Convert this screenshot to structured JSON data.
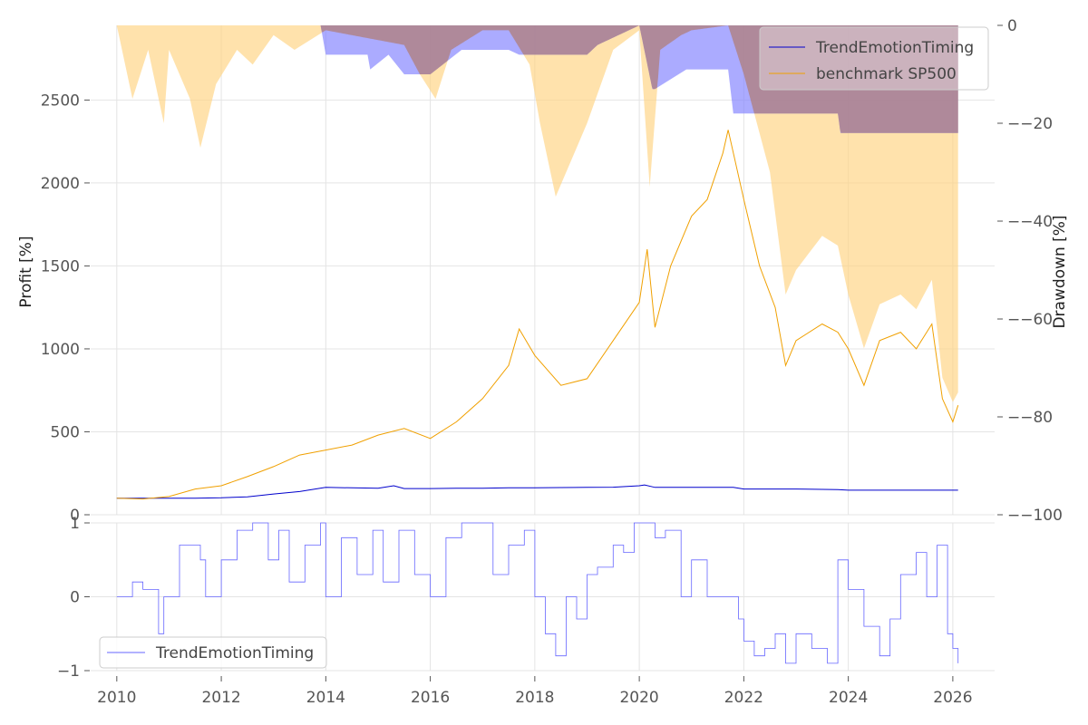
{
  "chart_data": [
    {
      "type": "line",
      "panel": "top",
      "title": "",
      "xlabel": "",
      "ylabel": "Profit [%]",
      "ylabel_right": "Drawdown [%]",
      "xlim": [
        2009.5,
        2026.8
      ],
      "ylim": [
        0,
        2950
      ],
      "ylim_right": [
        -100,
        0
      ],
      "xticks": [
        "2010",
        "2012",
        "2014",
        "2016",
        "2018",
        "2020",
        "2022",
        "2024",
        "2026"
      ],
      "yticks": [
        "0",
        "500",
        "1000",
        "1500",
        "2000",
        "2500"
      ],
      "yticks_right": [
        "0",
        "−20",
        "−40",
        "−60",
        "−80",
        "−100"
      ],
      "legend_position": "top-right",
      "grid": true,
      "series": [
        {
          "name": "TrendEmotionTiming",
          "color": "#0000cc",
          "x": [
            2010.0,
            2010.5,
            2011.0,
            2011.5,
            2012.0,
            2012.5,
            2013.0,
            2013.5,
            2014.0,
            2014.5,
            2015.0,
            2015.3,
            2015.5,
            2016.0,
            2016.5,
            2017.0,
            2017.5,
            2018.0,
            2018.5,
            2019.0,
            2019.5,
            2020.0,
            2020.1,
            2020.3,
            2020.6,
            2021.0,
            2021.5,
            2021.8,
            2022.0,
            2023.0,
            2023.8,
            2024.0,
            2024.5,
            2025.0,
            2025.5,
            2026.0,
            2026.1
          ],
          "values": [
            100,
            100,
            100,
            100,
            102,
            108,
            125,
            140,
            165,
            162,
            160,
            175,
            158,
            158,
            160,
            160,
            162,
            162,
            164,
            165,
            166,
            175,
            180,
            165,
            165,
            165,
            165,
            165,
            155,
            155,
            152,
            148,
            148,
            148,
            148,
            148,
            148
          ]
        },
        {
          "name": "benchmark SP500",
          "color": "#f0a000",
          "x": [
            2010.0,
            2010.5,
            2011.0,
            2011.5,
            2012.0,
            2012.5,
            2013.0,
            2013.5,
            2014.0,
            2014.5,
            2015.0,
            2015.5,
            2016.0,
            2016.5,
            2017.0,
            2017.5,
            2017.7,
            2018.0,
            2018.5,
            2019.0,
            2019.5,
            2020.0,
            2020.15,
            2020.3,
            2020.6,
            2021.0,
            2021.3,
            2021.6,
            2021.7,
            2022.0,
            2022.3,
            2022.6,
            2022.8,
            2023.0,
            2023.5,
            2023.8,
            2024.0,
            2024.3,
            2024.6,
            2025.0,
            2025.3,
            2025.6,
            2025.8,
            2026.0,
            2026.1
          ],
          "values": [
            100,
            95,
            110,
            155,
            175,
            230,
            290,
            360,
            390,
            420,
            480,
            520,
            460,
            560,
            700,
            900,
            1120,
            960,
            780,
            820,
            1050,
            1280,
            1600,
            1130,
            1500,
            1800,
            1900,
            2180,
            2320,
            1900,
            1500,
            1250,
            900,
            1050,
            1150,
            1100,
            1000,
            780,
            1050,
            1100,
            1000,
            1150,
            700,
            560,
            660
          ]
        }
      ],
      "drawdown_series": [
        {
          "name": "TrendEmotionTiming drawdown",
          "color": "#8888ff",
          "x": [
            2010.0,
            2013.9,
            2014.0,
            2014.8,
            2014.85,
            2015.2,
            2015.5,
            2016.0,
            2016.6,
            2017.5,
            2017.7,
            2019.0,
            2019.2,
            2020.0,
            2020.25,
            2020.3,
            2020.9,
            2021.0,
            2021.7,
            2021.8,
            2023.8,
            2023.85,
            2026.1
          ],
          "values": [
            0,
            0,
            -6,
            -6,
            -9,
            -6,
            -10,
            -10,
            -5,
            -5,
            -6,
            -6,
            -4,
            0,
            -13,
            -13,
            -9,
            -9,
            -9,
            -18,
            -18,
            -22,
            -22
          ]
        },
        {
          "name": "benchmark SP500 drawdown",
          "color": "#ffd27f",
          "x": [
            2010.0,
            2010.3,
            2010.6,
            2010.9,
            2011.0,
            2011.4,
            2011.6,
            2011.9,
            2012.3,
            2012.6,
            2013.0,
            2013.4,
            2014.0,
            2015.5,
            2015.8,
            2016.1,
            2016.4,
            2017.0,
            2017.5,
            2017.9,
            2018.1,
            2018.4,
            2018.8,
            2019.0,
            2019.5,
            2020.0,
            2020.2,
            2020.4,
            2020.8,
            2021.0,
            2021.7,
            2022.0,
            2022.5,
            2022.8,
            2023.0,
            2023.5,
            2023.8,
            2024.0,
            2024.3,
            2024.6,
            2025.0,
            2025.3,
            2025.6,
            2025.8,
            2026.0,
            2026.1
          ],
          "values": [
            0,
            -15,
            -5,
            -20,
            -5,
            -15,
            -25,
            -12,
            -5,
            -8,
            -2,
            -5,
            -1,
            -4,
            -10,
            -15,
            -5,
            -1,
            -1,
            -8,
            -20,
            -35,
            -25,
            -20,
            -5,
            -1,
            -33,
            -5,
            -2,
            -1,
            0,
            -10,
            -30,
            -55,
            -50,
            -43,
            -45,
            -55,
            -66,
            -57,
            -55,
            -58,
            -52,
            -72,
            -77,
            -75
          ]
        }
      ]
    },
    {
      "type": "line",
      "panel": "bottom",
      "title": "",
      "xlabel": "",
      "ylabel": "",
      "xlim": [
        2009.5,
        2026.8
      ],
      "ylim": [
        -1,
        1
      ],
      "yticks": [
        "−1",
        "0",
        "1"
      ],
      "xticks": [
        "2010",
        "2012",
        "2014",
        "2016",
        "2018",
        "2020",
        "2022",
        "2024",
        "2026"
      ],
      "legend_position": "bottom-left",
      "grid": true,
      "series": [
        {
          "name": "TrendEmotionTiming",
          "color": "#6666ff",
          "x": [
            2010.0,
            2010.3,
            2010.5,
            2010.8,
            2010.9,
            2011.0,
            2011.2,
            2011.6,
            2011.7,
            2012.0,
            2012.3,
            2012.6,
            2012.9,
            2013.1,
            2013.3,
            2013.6,
            2013.9,
            2014.0,
            2014.3,
            2014.6,
            2014.9,
            2015.1,
            2015.4,
            2015.7,
            2016.0,
            2016.3,
            2016.6,
            2016.9,
            2017.2,
            2017.5,
            2017.8,
            2018.0,
            2018.2,
            2018.4,
            2018.6,
            2018.8,
            2019.0,
            2019.2,
            2019.5,
            2019.7,
            2019.9,
            2020.1,
            2020.3,
            2020.5,
            2020.8,
            2021.0,
            2021.3,
            2021.6,
            2021.9,
            2022.0,
            2022.2,
            2022.4,
            2022.6,
            2022.8,
            2023.0,
            2023.3,
            2023.6,
            2023.8,
            2024.0,
            2024.3,
            2024.6,
            2024.8,
            2025.0,
            2025.3,
            2025.5,
            2025.7,
            2025.9,
            2026.0,
            2026.1
          ],
          "values": [
            0,
            0.2,
            0.1,
            -0.5,
            0,
            0,
            0.7,
            0.5,
            0,
            0.5,
            0.9,
            1,
            0.5,
            0.9,
            0.2,
            0.7,
            1,
            0,
            0.8,
            0.3,
            0.9,
            0.2,
            0.9,
            0.3,
            0,
            0.8,
            1,
            1,
            0.3,
            0.7,
            0.9,
            0,
            -0.5,
            -0.8,
            0,
            -0.3,
            0.3,
            0.4,
            0.7,
            0.6,
            1,
            1,
            0.8,
            0.9,
            0,
            0.5,
            0,
            0,
            -0.3,
            -0.6,
            -0.8,
            -0.7,
            -0.5,
            -0.9,
            -0.5,
            -0.7,
            -0.9,
            0.5,
            0.1,
            -0.4,
            -0.8,
            -0.3,
            0.3,
            0.6,
            0,
            0.7,
            -0.5,
            -0.7,
            -0.9
          ]
        }
      ]
    }
  ]
}
